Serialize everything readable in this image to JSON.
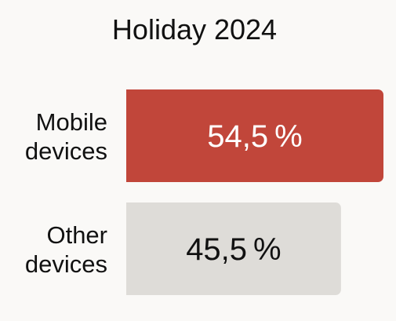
{
  "chart_data": {
    "type": "bar",
    "orientation": "horizontal",
    "title": "Holiday 2024",
    "categories": [
      [
        "Mobile",
        "devices"
      ],
      [
        "Other",
        "devices"
      ]
    ],
    "values": [
      54.5,
      45.5
    ],
    "value_labels": [
      "54,5 %",
      "45,5 %"
    ],
    "unit": "%",
    "xlim": [
      0,
      54.5
    ],
    "grid": false,
    "legend": "none",
    "colors": {
      "bars": [
        "#c1463a",
        "#dedcd8"
      ],
      "value_text": [
        "#ffffff",
        "#111111"
      ],
      "background": "#faf9f7"
    }
  }
}
